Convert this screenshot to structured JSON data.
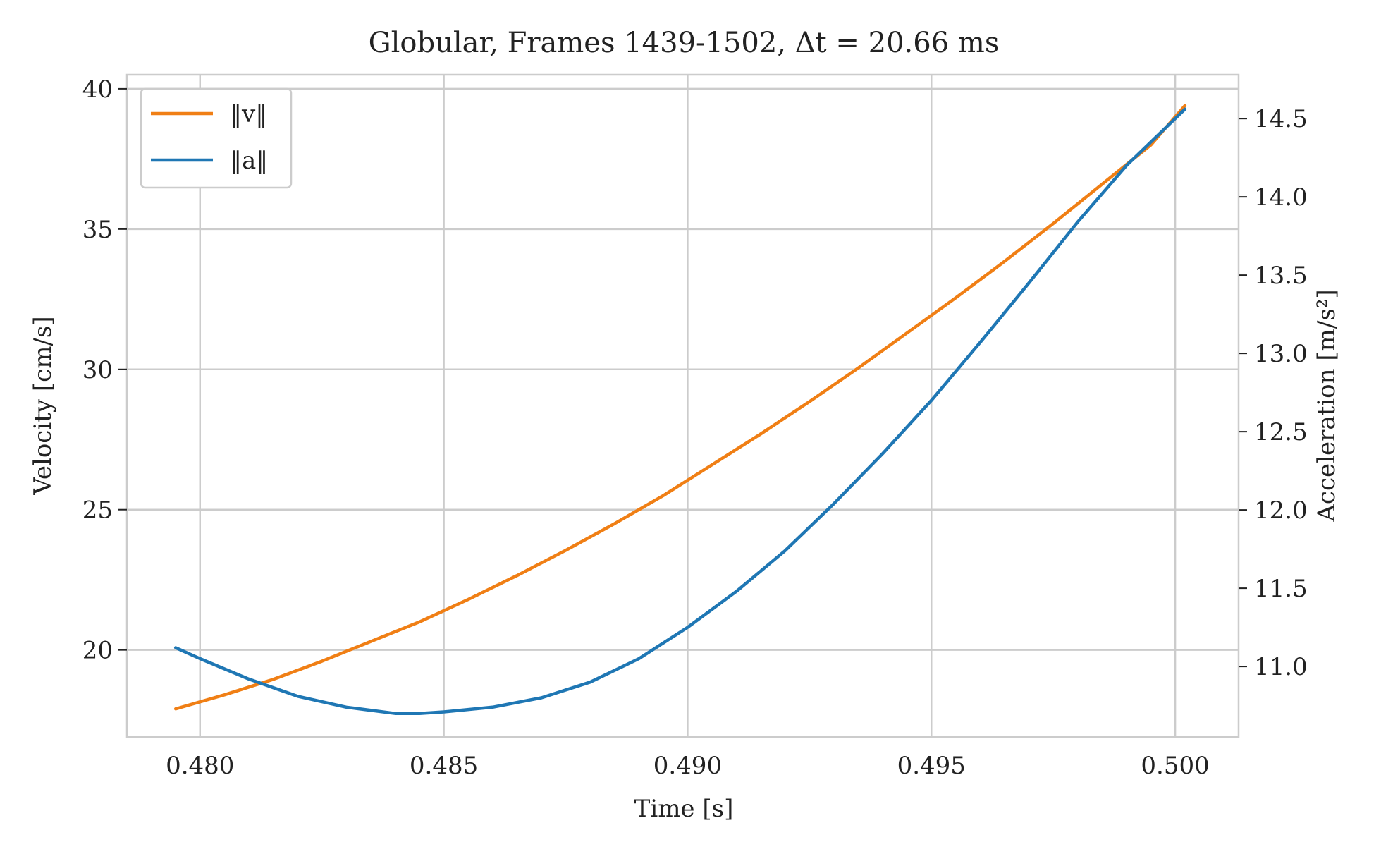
{
  "chart_data": {
    "type": "line",
    "title": "Globular, Frames 1439-1502, Δt = 20.66 ms",
    "xlabel": "Time [s]",
    "ylabel_left": "Velocity [cm/s]",
    "ylabel_right": "Acceleration [m/s²]",
    "xlim": [
      0.4785,
      0.5013
    ],
    "ylim_left": [
      16.9,
      40.5
    ],
    "ylim_right": [
      10.55,
      14.78
    ],
    "x_ticks": [
      0.48,
      0.485,
      0.49,
      0.495,
      0.5
    ],
    "x_tick_labels": [
      "0.480",
      "0.485",
      "0.490",
      "0.495",
      "0.500"
    ],
    "y_left_ticks": [
      20,
      25,
      30,
      35,
      40
    ],
    "y_left_tick_labels": [
      "20",
      "25",
      "30",
      "35",
      "40"
    ],
    "y_right_ticks": [
      11.0,
      11.5,
      12.0,
      12.5,
      13.0,
      13.5,
      14.0,
      14.5
    ],
    "y_right_tick_labels": [
      "11.0",
      "11.5",
      "12.0",
      "12.5",
      "13.0",
      "13.5",
      "14.0",
      "14.5"
    ],
    "grid": true,
    "legend_position": "top-left",
    "series": [
      {
        "name": "‖v‖",
        "axis": "left",
        "color": "#f07f15",
        "x": [
          0.4795,
          0.4805,
          0.4815,
          0.4825,
          0.4835,
          0.4845,
          0.4855,
          0.4865,
          0.4875,
          0.4885,
          0.4895,
          0.4905,
          0.4915,
          0.4925,
          0.4935,
          0.4945,
          0.4955,
          0.4965,
          0.4975,
          0.4985,
          0.4995,
          0.5002
        ],
        "values": [
          17.9,
          18.4,
          18.95,
          19.6,
          20.3,
          21.0,
          21.8,
          22.65,
          23.55,
          24.5,
          25.5,
          26.6,
          27.7,
          28.85,
          30.05,
          31.3,
          32.55,
          33.85,
          35.2,
          36.6,
          38.0,
          39.4
        ]
      },
      {
        "name": "‖a‖",
        "axis": "right",
        "color": "#1f77b4",
        "x": [
          0.4795,
          0.48,
          0.481,
          0.482,
          0.483,
          0.484,
          0.4845,
          0.485,
          0.486,
          0.487,
          0.488,
          0.489,
          0.49,
          0.491,
          0.492,
          0.493,
          0.494,
          0.495,
          0.496,
          0.497,
          0.498,
          0.499,
          0.5002
        ],
        "values": [
          11.12,
          11.05,
          10.92,
          10.81,
          10.74,
          10.7,
          10.7,
          10.71,
          10.74,
          10.8,
          10.9,
          11.05,
          11.25,
          11.48,
          11.74,
          12.04,
          12.36,
          12.7,
          13.07,
          13.45,
          13.84,
          14.2,
          14.56
        ]
      }
    ]
  }
}
